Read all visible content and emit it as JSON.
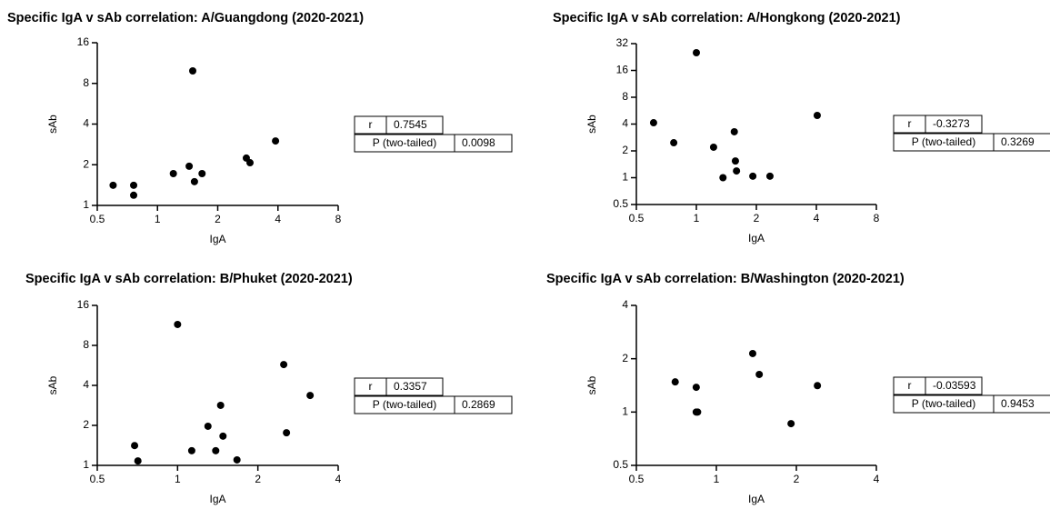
{
  "chart_data": [
    {
      "type": "scatter",
      "title": "Specific IgA v sAb correlation: A/Guangdong (2020-2021)",
      "xlabel": "IgA",
      "ylabel": "sAb",
      "x": [
        0.6,
        0.76,
        0.76,
        1.2,
        1.44,
        1.53,
        1.67,
        1.5,
        2.78,
        2.9,
        3.89
      ],
      "values": [
        1.41,
        1.41,
        1.19,
        1.72,
        1.95,
        1.5,
        1.72,
        9.9,
        2.24,
        2.07,
        3.0
      ],
      "color": "#000000",
      "xscale": "log",
      "yscale": "log",
      "xlim": [
        0.5,
        8
      ],
      "xticks": [
        0.5,
        1,
        2,
        4,
        8
      ],
      "ylim": [
        1,
        16
      ],
      "yticks": [
        1,
        2,
        4,
        8,
        16
      ],
      "stats": [
        {
          "label": "r",
          "value": 0.7545
        },
        {
          "label": "P (two-tailed)",
          "value": 0.0098
        }
      ]
    },
    {
      "type": "scatter",
      "title": "Specific IgA v sAb correlation: A/Hongkong (2020-2021)",
      "xlabel": "IgA",
      "ylabel": "sAb",
      "x": [
        0.61,
        0.77,
        1.0,
        1.22,
        1.36,
        1.55,
        1.57,
        1.59,
        1.92,
        2.34,
        4.04
      ],
      "values": [
        4.14,
        2.47,
        25.3,
        2.2,
        1.0,
        3.28,
        1.54,
        1.19,
        1.04,
        1.04,
        5.0
      ],
      "color": "#000000",
      "xscale": "log",
      "yscale": "log",
      "xlim": [
        0.5,
        8
      ],
      "xticks": [
        0.5,
        1,
        2,
        4,
        8
      ],
      "ylim": [
        0.5,
        32
      ],
      "yticks": [
        0.5,
        1,
        2,
        4,
        8,
        16,
        32
      ],
      "stats": [
        {
          "label": "r",
          "value": -0.3273
        },
        {
          "label": "P (two-tailed)",
          "value": 0.3269
        }
      ]
    },
    {
      "type": "scatter",
      "title": "Specific IgA v sAb correlation: B/Phuket (2020-2021)",
      "xlabel": "IgA",
      "ylabel": "sAb",
      "x": [
        0.69,
        0.71,
        1.0,
        1.13,
        1.3,
        1.39,
        1.45,
        1.48,
        1.67,
        2.5,
        2.56,
        3.14
      ],
      "values": [
        1.41,
        1.08,
        11.5,
        1.29,
        1.97,
        1.29,
        2.83,
        1.66,
        1.1,
        5.74,
        1.76,
        3.36
      ],
      "color": "#000000",
      "xscale": "log",
      "yscale": "log",
      "xlim": [
        0.5,
        4
      ],
      "xticks": [
        0.5,
        1,
        2,
        4
      ],
      "ylim": [
        1,
        16
      ],
      "yticks": [
        1,
        2,
        4,
        8,
        16
      ],
      "stats": [
        {
          "label": "r",
          "value": 0.3357
        },
        {
          "label": "P (two-tailed)",
          "value": 0.2869
        }
      ]
    },
    {
      "type": "scatter",
      "title": "Specific IgA v sAb correlation: B/Washington (2020-2021)",
      "xlabel": "IgA",
      "ylabel": "sAb",
      "x": [
        0.7,
        0.84,
        0.84,
        0.85,
        1.37,
        1.45,
        1.91,
        2.4
      ],
      "values": [
        1.48,
        1.38,
        1.0,
        1.0,
        2.14,
        1.63,
        0.86,
        1.41
      ],
      "color": "#000000",
      "xscale": "log",
      "yscale": "log",
      "xlim": [
        0.5,
        4
      ],
      "xticks": [
        0.5,
        1,
        2,
        4
      ],
      "ylim": [
        0.5,
        4
      ],
      "yticks": [
        0.5,
        1,
        2,
        4
      ],
      "stats": [
        {
          "label": "r",
          "value": -0.03593
        },
        {
          "label": "P (two-tailed)",
          "value": 0.9453
        }
      ]
    }
  ]
}
